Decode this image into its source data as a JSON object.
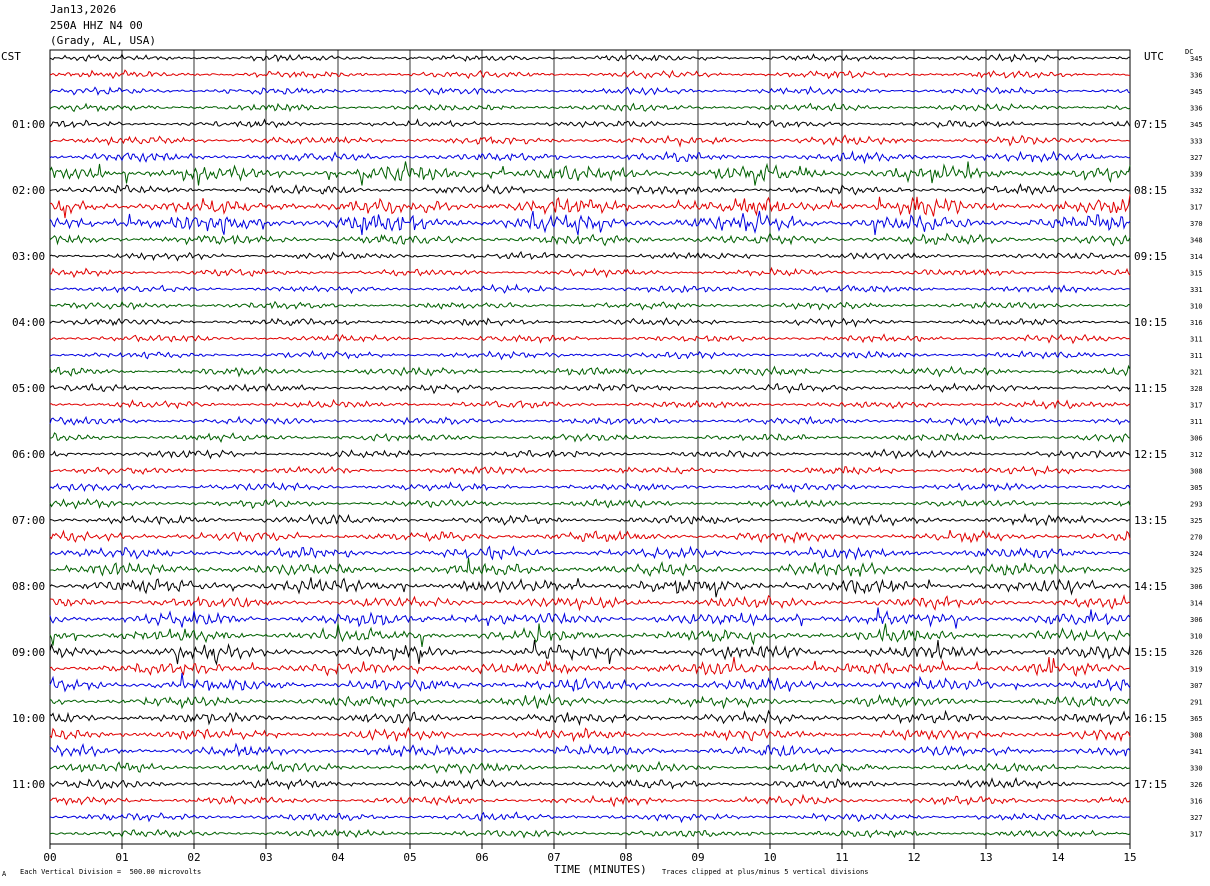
{
  "header": {
    "date": "Jan13,2026",
    "station": "250A HHZ N4 00",
    "location": "(Grady, AL, USA)"
  },
  "left_tz": "CST",
  "right_tz": "UTC",
  "dc_label": "DC",
  "footer": {
    "scale_note": "Each Vertical Division =  500.00 microvolts",
    "clip_note": "Traces clipped at plus/minus 5 vertical divisions",
    "corner_mark": "A"
  },
  "colors": {
    "trace_cycle": [
      "#000000",
      "#e00000",
      "#0000e0",
      "#006000"
    ],
    "grid": "#000000"
  },
  "chart_data": {
    "type": "helicorder",
    "xlabel": "TIME (MINUTES)",
    "x_ticks": [
      "00",
      "01",
      "02",
      "03",
      "04",
      "05",
      "06",
      "07",
      "08",
      "09",
      "10",
      "11",
      "12",
      "13",
      "14",
      "15"
    ],
    "xlim": [
      0,
      15
    ],
    "trace_minutes_per_line": 15,
    "left_hour_labels": [
      "01:00",
      "02:00",
      "03:00",
      "04:00",
      "05:00",
      "06:00",
      "07:00",
      "08:00",
      "09:00",
      "10:00",
      "11:00"
    ],
    "right_hour_labels": [
      "07:15",
      "08:15",
      "09:15",
      "10:15",
      "11:15",
      "12:15",
      "13:15",
      "14:15",
      "15:15",
      "16:15",
      "17:15"
    ],
    "dc_offsets": [
      345,
      336,
      345,
      336,
      345,
      333,
      327,
      339,
      332,
      317,
      370,
      348,
      314,
      315,
      331,
      310,
      316,
      311,
      311,
      321,
      328,
      317,
      311,
      306,
      312,
      308,
      305,
      293,
      325,
      270,
      324,
      325,
      306,
      314,
      306,
      310,
      326,
      319,
      307,
      291,
      365,
      308,
      341,
      330,
      326,
      316,
      327,
      317
    ],
    "activity": [
      1,
      1,
      1,
      1,
      1,
      1.2,
      1.3,
      2.2,
      1.3,
      2.2,
      2.4,
      1.5,
      1,
      1,
      1,
      1,
      1,
      1,
      1,
      1.2,
      1.1,
      1.1,
      1.1,
      1.1,
      1.1,
      1.1,
      1.1,
      1.1,
      1.3,
      1.5,
      1.6,
      1.8,
      2.0,
      1.6,
      1.8,
      1.8,
      1.9,
      1.8,
      1.8,
      1.6,
      1.6,
      1.6,
      1.6,
      1.4,
      1.3,
      1.2,
      1.1,
      1.1
    ]
  }
}
